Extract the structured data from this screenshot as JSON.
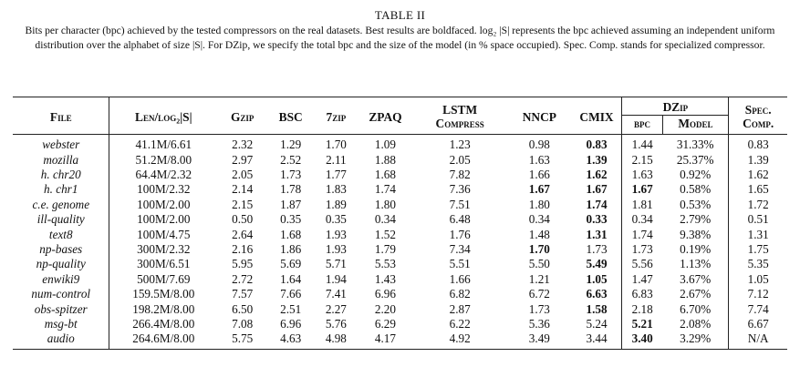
{
  "table_label": "TABLE II",
  "caption": "Bits per character (bpc) achieved by the tested compressors on the real datasets. Best results are boldfaced. log₂ |S| represents the bpc achieved assuming an independent uniform distribution over the alphabet of size |S|. For DZip, we specify the total bpc and the size of the model (in % space occupied). Spec. Comp. stands for specialized compressor.",
  "headers": {
    "file": "File",
    "len": "Len/log₂|S|",
    "gzip": "Gzip",
    "bsc": "BSC",
    "zip7": "7zip",
    "zpaq": "ZPAQ",
    "lstm_line1": "LSTM",
    "lstm_line2": "Compress",
    "nncp": "NNCP",
    "cmix": "CMIX",
    "dzip": "DZip",
    "dzip_bpc": "bpc",
    "dzip_model": "Model",
    "spec_line1": "Spec.",
    "spec_line2": "Comp."
  },
  "rows": [
    {
      "file": "webster",
      "len": "41.1M/6.61",
      "gzip": "2.32",
      "bsc": "1.29",
      "zip7": "1.70",
      "zpaq": "1.09",
      "lstm": "1.23",
      "nncp": "0.98",
      "cmix": "0.83",
      "dzip_bpc": "1.44",
      "dzip_model": "31.33%",
      "spec": "0.83",
      "bold": [
        "cmix"
      ]
    },
    {
      "file": "mozilla",
      "len": "51.2M/8.00",
      "gzip": "2.97",
      "bsc": "2.52",
      "zip7": "2.11",
      "zpaq": "1.88",
      "lstm": "2.05",
      "nncp": "1.63",
      "cmix": "1.39",
      "dzip_bpc": "2.15",
      "dzip_model": "25.37%",
      "spec": "1.39",
      "bold": [
        "cmix"
      ]
    },
    {
      "file": "h. chr20",
      "len": "64.4M/2.32",
      "gzip": "2.05",
      "bsc": "1.73",
      "zip7": "1.77",
      "zpaq": "1.68",
      "lstm": "7.82",
      "nncp": "1.66",
      "cmix": "1.62",
      "dzip_bpc": "1.63",
      "dzip_model": "0.92%",
      "spec": "1.62",
      "bold": [
        "cmix"
      ]
    },
    {
      "file": "h. chr1",
      "len": "100M/2.32",
      "gzip": "2.14",
      "bsc": "1.78",
      "zip7": "1.83",
      "zpaq": "1.74",
      "lstm": "7.36",
      "nncp": "1.67",
      "cmix": "1.67",
      "dzip_bpc": "1.67",
      "dzip_model": "0.58%",
      "spec": "1.65",
      "bold": [
        "nncp",
        "cmix",
        "dzip_bpc"
      ]
    },
    {
      "file": "c.e. genome",
      "len": "100M/2.00",
      "gzip": "2.15",
      "bsc": "1.87",
      "zip7": "1.89",
      "zpaq": "1.80",
      "lstm": "7.51",
      "nncp": "1.80",
      "cmix": "1.74",
      "dzip_bpc": "1.81",
      "dzip_model": "0.53%",
      "spec": "1.72",
      "bold": [
        "cmix"
      ]
    },
    {
      "file": "ill-quality",
      "len": "100M/2.00",
      "gzip": "0.50",
      "bsc": "0.35",
      "zip7": "0.35",
      "zpaq": "0.34",
      "lstm": "6.48",
      "nncp": "0.34",
      "cmix": "0.33",
      "dzip_bpc": "0.34",
      "dzip_model": "2.79%",
      "spec": "0.51",
      "bold": [
        "cmix"
      ]
    },
    {
      "file": "text8",
      "len": "100M/4.75",
      "gzip": "2.64",
      "bsc": "1.68",
      "zip7": "1.93",
      "zpaq": "1.52",
      "lstm": "1.76",
      "nncp": "1.48",
      "cmix": "1.31",
      "dzip_bpc": "1.74",
      "dzip_model": "9.38%",
      "spec": "1.31",
      "bold": [
        "cmix"
      ]
    },
    {
      "file": "np-bases",
      "len": "300M/2.32",
      "gzip": "2.16",
      "bsc": "1.86",
      "zip7": "1.93",
      "zpaq": "1.79",
      "lstm": "7.34",
      "nncp": "1.70",
      "cmix": "1.73",
      "dzip_bpc": "1.73",
      "dzip_model": "0.19%",
      "spec": "1.75",
      "bold": [
        "nncp"
      ]
    },
    {
      "file": "np-quality",
      "len": "300M/6.51",
      "gzip": "5.95",
      "bsc": "5.69",
      "zip7": "5.71",
      "zpaq": "5.53",
      "lstm": "5.51",
      "nncp": "5.50",
      "cmix": "5.49",
      "dzip_bpc": "5.56",
      "dzip_model": "1.13%",
      "spec": "5.35",
      "bold": [
        "cmix"
      ]
    },
    {
      "file": "enwiki9",
      "len": "500M/7.69",
      "gzip": "2.72",
      "bsc": "1.64",
      "zip7": "1.94",
      "zpaq": "1.43",
      "lstm": "1.66",
      "nncp": "1.21",
      "cmix": "1.05",
      "dzip_bpc": "1.47",
      "dzip_model": "3.67%",
      "spec": "1.05",
      "bold": [
        "cmix"
      ]
    },
    {
      "file": "num-control",
      "len": "159.5M/8.00",
      "gzip": "7.57",
      "bsc": "7.66",
      "zip7": "7.41",
      "zpaq": "6.96",
      "lstm": "6.82",
      "nncp": "6.72",
      "cmix": "6.63",
      "dzip_bpc": "6.83",
      "dzip_model": "2.67%",
      "spec": "7.12",
      "bold": [
        "cmix"
      ]
    },
    {
      "file": "obs-spitzer",
      "len": "198.2M/8.00",
      "gzip": "6.50",
      "bsc": "2.51",
      "zip7": "2.27",
      "zpaq": "2.20",
      "lstm": "2.87",
      "nncp": "1.73",
      "cmix": "1.58",
      "dzip_bpc": "2.18",
      "dzip_model": "6.70%",
      "spec": "7.74",
      "bold": [
        "cmix"
      ]
    },
    {
      "file": "msg-bt",
      "len": "266.4M/8.00",
      "gzip": "7.08",
      "bsc": "6.96",
      "zip7": "5.76",
      "zpaq": "6.29",
      "lstm": "6.22",
      "nncp": "5.36",
      "cmix": "5.24",
      "dzip_bpc": "5.21",
      "dzip_model": "2.08%",
      "spec": "6.67",
      "bold": [
        "dzip_bpc"
      ]
    },
    {
      "file": "audio",
      "len": "264.6M/8.00",
      "gzip": "5.75",
      "bsc": "4.63",
      "zip7": "4.98",
      "zpaq": "4.17",
      "lstm": "4.92",
      "nncp": "3.49",
      "cmix": "3.44",
      "dzip_bpc": "3.40",
      "dzip_model": "3.29%",
      "spec": "N/A",
      "bold": [
        "dzip_bpc"
      ]
    }
  ]
}
